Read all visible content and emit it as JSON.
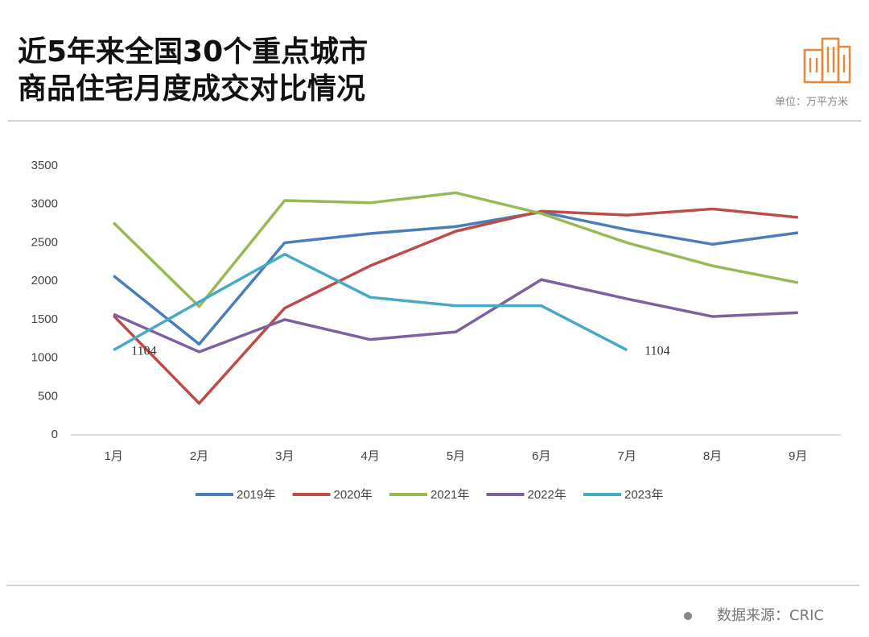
{
  "header": {
    "title_lines": [
      "近5年来全国30个重点城市",
      "商品住宅月度成交对比情况"
    ],
    "unit": "单位：万平方米"
  },
  "footer": {
    "source": "数据来源：CRIC"
  },
  "chart_data": {
    "type": "line",
    "categories": [
      "1月",
      "2月",
      "3月",
      "4月",
      "5月",
      "6月",
      "7月",
      "8月",
      "9月"
    ],
    "ylim": [
      0,
      3500
    ],
    "yticks": [
      0,
      500,
      1000,
      1500,
      2000,
      2500,
      3000,
      3500
    ],
    "grid": false,
    "legend": "bottom",
    "series": [
      {
        "name": "2019年",
        "color": "#4a7ebb",
        "values": [
          2070,
          1180,
          2500,
          2620,
          2710,
          2900,
          2670,
          2480,
          2630
        ]
      },
      {
        "name": "2020年",
        "color": "#be4b48",
        "values": [
          1550,
          410,
          1650,
          2200,
          2650,
          2910,
          2860,
          2940,
          2830
        ]
      },
      {
        "name": "2021年",
        "color": "#98b954",
        "values": [
          2760,
          1670,
          3050,
          3020,
          3150,
          2880,
          2500,
          2200,
          1980
        ]
      },
      {
        "name": "2022年",
        "color": "#7d60a0",
        "values": [
          1570,
          1080,
          1500,
          1240,
          1340,
          2020,
          1770,
          1540,
          1590
        ]
      },
      {
        "name": "2023年",
        "color": "#46aac5",
        "values": [
          1104,
          1730,
          2350,
          1790,
          1680,
          1680,
          1104,
          null,
          null
        ],
        "value_labels": [
          "1104",
          null,
          null,
          null,
          null,
          null,
          "1104",
          null,
          null
        ]
      }
    ]
  }
}
